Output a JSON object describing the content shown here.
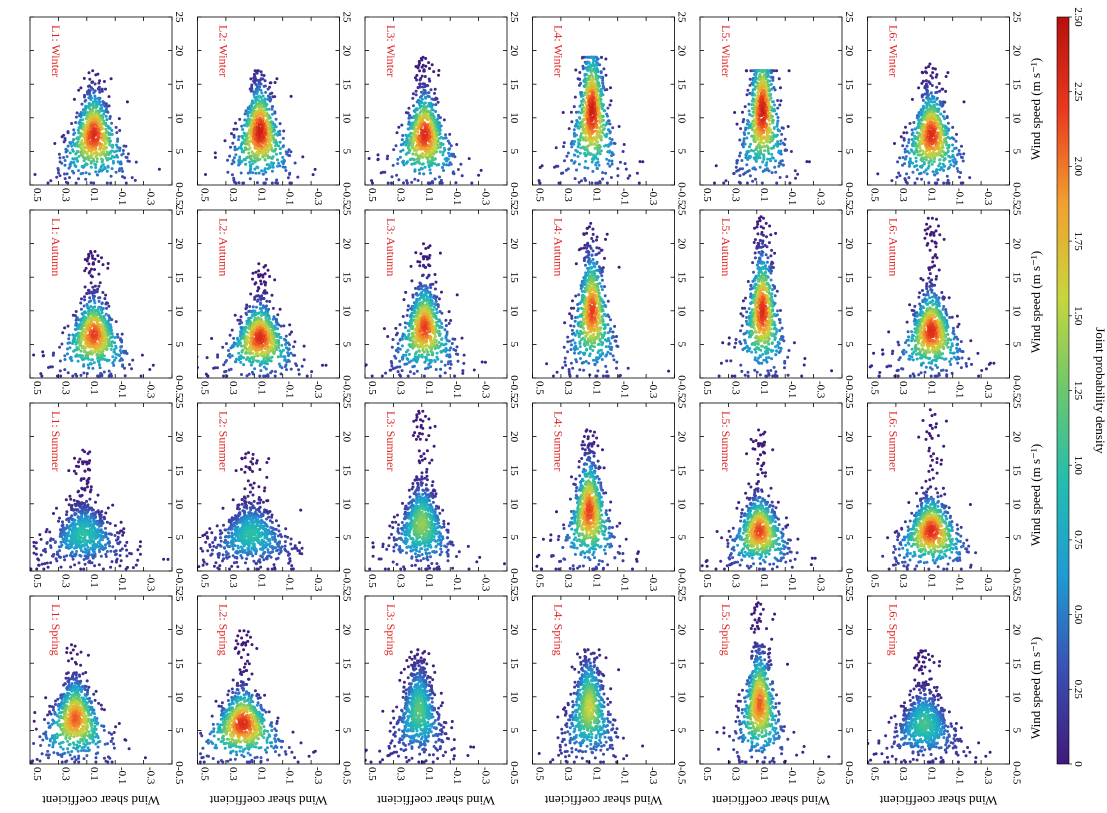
{
  "chart_data": {
    "type": "scatter",
    "description_kind": "joint probability density scatter grid",
    "xlabel": "Wind speed (m s⁻¹)",
    "ylabel": "Wind shear coefficient",
    "xlim": [
      0,
      25
    ],
    "ylim": [
      -0.5,
      0.5
    ],
    "x_ticks": [
      "0",
      "5",
      "10",
      "15",
      "20",
      "25"
    ],
    "y_ticks": [
      "-0.5",
      "-0.3",
      "-0.1",
      "0.1",
      "0.3",
      "0.5"
    ],
    "columns": [
      "Spring",
      "Summer",
      "Autumn",
      "Winter"
    ],
    "rows": [
      "L1",
      "L2",
      "L3",
      "L4",
      "L5",
      "L6"
    ],
    "panels": [
      {
        "label": "L1: Spring",
        "spread": 0.22,
        "x_peak": 6.8,
        "y_peak": 0.18,
        "x_max": 18,
        "peak_density": 2.1
      },
      {
        "label": "L1: Summer",
        "spread": 0.26,
        "x_peak": 5.5,
        "y_peak": 0.12,
        "x_max": 18,
        "peak_density": 1.0
      },
      {
        "label": "L1: Autumn",
        "spread": 0.2,
        "x_peak": 6.5,
        "y_peak": 0.05,
        "x_max": 19,
        "peak_density": 2.2
      },
      {
        "label": "L1: Winter",
        "spread": 0.22,
        "x_peak": 7.5,
        "y_peak": 0.05,
        "x_max": 17,
        "peak_density": 2.3
      },
      {
        "label": "L2: Spring",
        "spread": 0.24,
        "x_peak": 6.0,
        "y_peak": 0.18,
        "x_max": 20,
        "peak_density": 2.3
      },
      {
        "label": "L2: Summer",
        "spread": 0.28,
        "x_peak": 5.5,
        "y_peak": 0.12,
        "x_max": 18,
        "peak_density": 1.0
      },
      {
        "label": "L2: Autumn",
        "spread": 0.2,
        "x_peak": 6.0,
        "y_peak": 0.06,
        "x_max": 17,
        "peak_density": 2.3
      },
      {
        "label": "L2: Winter",
        "spread": 0.2,
        "x_peak": 8.0,
        "y_peak": 0.06,
        "x_max": 17,
        "peak_density": 2.4
      },
      {
        "label": "L3: Spring",
        "spread": 0.18,
        "x_peak": 8.0,
        "y_peak": 0.12,
        "x_max": 17,
        "peak_density": 1.2
      },
      {
        "label": "L3: Summer",
        "spread": 0.2,
        "x_peak": 7.0,
        "y_peak": 0.1,
        "x_max": 24,
        "peak_density": 1.4
      },
      {
        "label": "L3: Autumn",
        "spread": 0.2,
        "x_peak": 7.5,
        "y_peak": 0.08,
        "x_max": 20,
        "peak_density": 2.2
      },
      {
        "label": "L3: Winter",
        "spread": 0.2,
        "x_peak": 7.5,
        "y_peak": 0.08,
        "x_max": 19,
        "peak_density": 2.3
      },
      {
        "label": "L4: Spring",
        "spread": 0.18,
        "x_peak": 8.5,
        "y_peak": 0.1,
        "x_max": 17,
        "peak_density": 1.6
      },
      {
        "label": "L4: Summer",
        "spread": 0.18,
        "x_peak": 9.0,
        "y_peak": 0.1,
        "x_max": 21,
        "peak_density": 2.2
      },
      {
        "label": "L4: Autumn",
        "spread": 0.18,
        "x_peak": 10.0,
        "y_peak": 0.08,
        "x_max": 23,
        "peak_density": 2.2
      },
      {
        "label": "L4: Winter",
        "spread": 0.2,
        "x_peak": 11.0,
        "y_peak": 0.08,
        "x_max": 19,
        "peak_density": 2.4
      },
      {
        "label": "L5: Spring",
        "spread": 0.16,
        "x_peak": 9.0,
        "y_peak": 0.08,
        "x_max": 24,
        "peak_density": 2.1
      },
      {
        "label": "L5: Summer",
        "spread": 0.16,
        "x_peak": 6.0,
        "y_peak": 0.08,
        "x_max": 21,
        "peak_density": 2.2
      },
      {
        "label": "L5: Autumn",
        "spread": 0.16,
        "x_peak": 10.0,
        "y_peak": 0.06,
        "x_max": 24,
        "peak_density": 2.3
      },
      {
        "label": "L5: Winter",
        "spread": 0.18,
        "x_peak": 11.0,
        "y_peak": 0.06,
        "x_max": 17,
        "peak_density": 2.4
      },
      {
        "label": "L6: Spring",
        "spread": 0.22,
        "x_peak": 6.0,
        "y_peak": 0.1,
        "x_max": 17,
        "peak_density": 1.1
      },
      {
        "label": "L6: Summer",
        "spread": 0.2,
        "x_peak": 6.0,
        "y_peak": 0.05,
        "x_max": 24,
        "peak_density": 2.3
      },
      {
        "label": "L6: Autumn",
        "spread": 0.2,
        "x_peak": 7.0,
        "y_peak": 0.05,
        "x_max": 24,
        "peak_density": 2.3
      },
      {
        "label": "L6: Winter",
        "spread": 0.2,
        "x_peak": 7.5,
        "y_peak": 0.05,
        "x_max": 18,
        "peak_density": 2.3
      }
    ],
    "colorbar": {
      "label": "Joint probability density",
      "range": [
        0,
        2.5
      ],
      "ticks": [
        "0",
        "0.25",
        "0.50",
        "0.75",
        "1.00",
        "1.25",
        "1.50",
        "1.75",
        "2.00",
        "2.25",
        "2.50"
      ],
      "colors": [
        "#3f1a7a",
        "#3b4fb2",
        "#1f9ad3",
        "#22bcb0",
        "#6cc76d",
        "#c7d63d",
        "#f2a030",
        "#e83a1f",
        "#b7100e"
      ]
    },
    "label_color": "#e02020"
  }
}
